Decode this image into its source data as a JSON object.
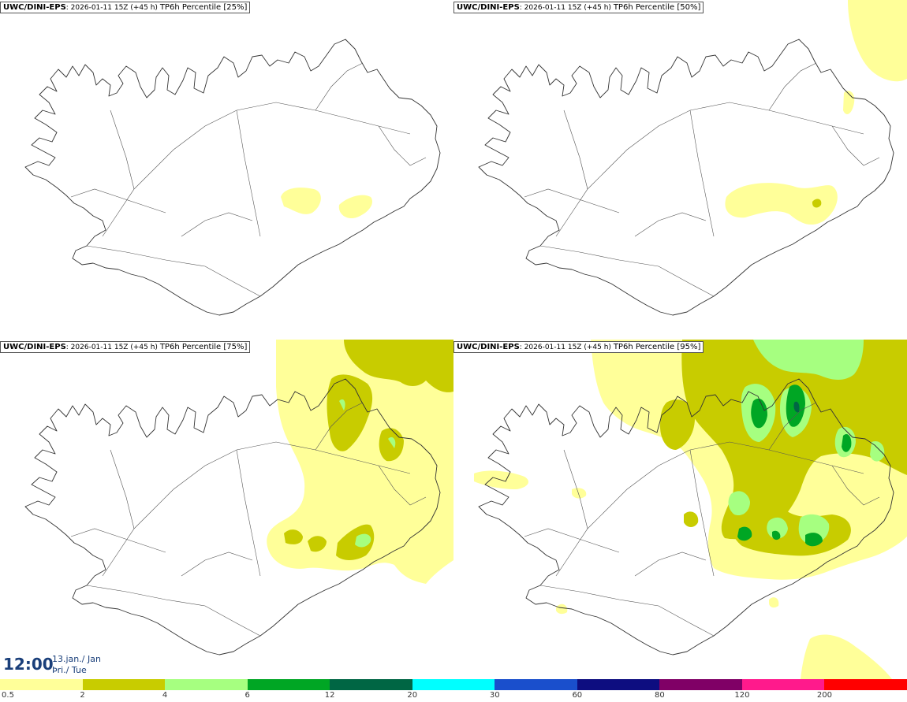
{
  "panels": [
    {
      "model": "UWC/DINI-EPS",
      "run": "2026-01-11 15Z",
      "lead": "(+45 h)",
      "product": "TP6h Percentile [25%]"
    },
    {
      "model": "UWC/DINI-EPS",
      "run": "2026-01-11 15Z",
      "lead": "(+45 h)",
      "product": "TP6h Percentile [50%]"
    },
    {
      "model": "UWC/DINI-EPS",
      "run": "2026-01-11 15Z",
      "lead": "(+45 h)",
      "product": "TP6h Percentile [75%]"
    },
    {
      "model": "UWC/DINI-EPS",
      "run": "2026-01-11 15Z",
      "lead": "(+45 h)",
      "product": "TP6h Percentile [95%]"
    }
  ],
  "valid_time": {
    "time": "12:00",
    "date_line1": "13.jan./ Jan",
    "date_line2": "Þri./ Tue"
  },
  "legend": {
    "colors": [
      "#ffff99",
      "#c8cc00",
      "#a6ff80",
      "#00a624",
      "#006644",
      "#00ffff",
      "#1a4fcc",
      "#0d0d80",
      "#800066",
      "#ff1a8c",
      "#ff0000"
    ],
    "labels": [
      "0.5",
      "2",
      "4",
      "6",
      "12",
      "20",
      "30",
      "60",
      "80",
      "120",
      "200"
    ]
  }
}
